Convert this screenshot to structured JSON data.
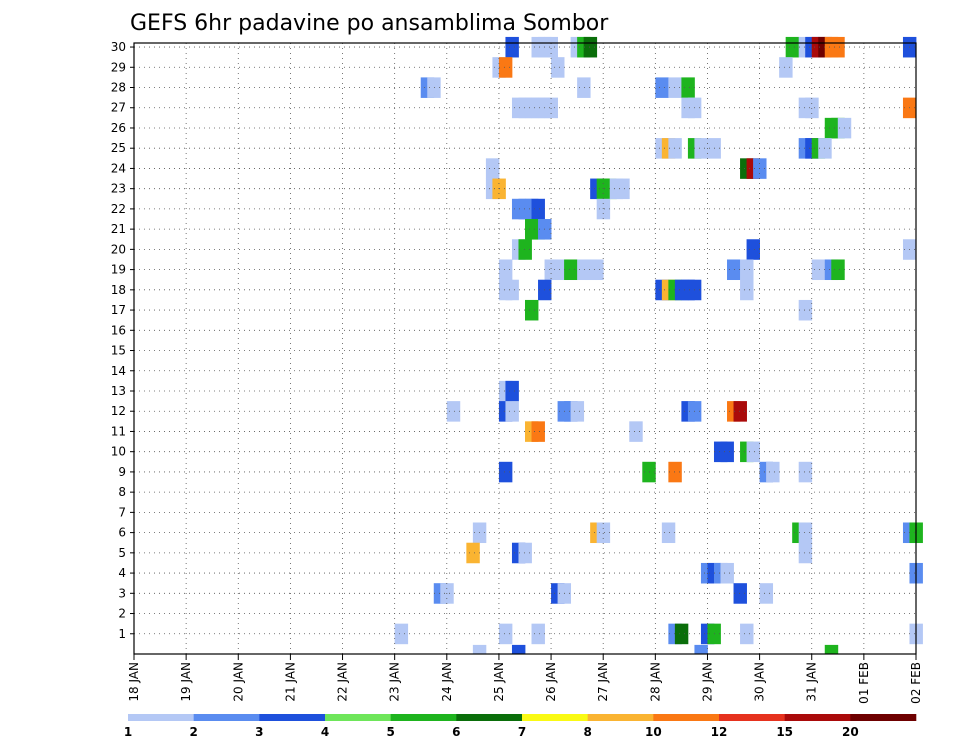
{
  "chart_data": {
    "type": "heatmap",
    "title": "GEFS 6hr padavine po ansamblima Sombor",
    "x_ticks": [
      "18 JAN",
      "19 JAN",
      "20 JAN",
      "21 JAN",
      "22 JAN",
      "23 JAN",
      "24 JAN",
      "25 JAN",
      "26 JAN",
      "27 JAN",
      "28 JAN",
      "29 JAN",
      "30 JAN",
      "31 JAN",
      "01 FEB",
      "02 FEB"
    ],
    "y_ticks": [
      "1",
      "2",
      "3",
      "4",
      "5",
      "6",
      "7",
      "8",
      "9",
      "10",
      "11",
      "12",
      "13",
      "14",
      "15",
      "16",
      "17",
      "18",
      "19",
      "20",
      "21",
      "22",
      "23",
      "24",
      "25",
      "26",
      "27",
      "28",
      "29",
      "30"
    ],
    "x_range_steps": [
      0,
      60
    ],
    "y_range": [
      0,
      30
    ],
    "grid": true,
    "legend": {
      "placement": "bottom",
      "labels": [
        "1",
        "2",
        "3",
        "4",
        "5",
        "6",
        "7",
        "8",
        "10",
        "12",
        "15",
        "20"
      ],
      "colors": [
        "#b4c8f5",
        "#5a8cf0",
        "#1e50dc",
        "#6ee65a",
        "#1eb41e",
        "#0a6e0a",
        "#fafa14",
        "#fab432",
        "#fa7814",
        "#e6321e",
        "#aa0a0a",
        "#6e0000"
      ]
    },
    "cells": [
      [
        30,
        28.5,
        3
      ],
      [
        30,
        30.5,
        1
      ],
      [
        30,
        31,
        1
      ],
      [
        30,
        31.5,
        1
      ],
      [
        30,
        33.5,
        1
      ],
      [
        30,
        34,
        5
      ],
      [
        30,
        34.5,
        6
      ],
      [
        30,
        50,
        5
      ],
      [
        30,
        51,
        1
      ],
      [
        30,
        51.5,
        3
      ],
      [
        30,
        52,
        11
      ],
      [
        30,
        52.5,
        12
      ],
      [
        30,
        53,
        9
      ],
      [
        30,
        53.5,
        9
      ],
      [
        30,
        59,
        3
      ],
      [
        29,
        27.5,
        1
      ],
      [
        29,
        28,
        9
      ],
      [
        29,
        32,
        1
      ],
      [
        29,
        49.5,
        1
      ],
      [
        28,
        22,
        2
      ],
      [
        28,
        22.5,
        1
      ],
      [
        28,
        34,
        1
      ],
      [
        28,
        40,
        2
      ],
      [
        28,
        41,
        1
      ],
      [
        28,
        42,
        5
      ],
      [
        27,
        29,
        1
      ],
      [
        27,
        29.5,
        1
      ],
      [
        27,
        30,
        1
      ],
      [
        27,
        30.5,
        1
      ],
      [
        27,
        31,
        1
      ],
      [
        27,
        31.5,
        1
      ],
      [
        27,
        42,
        1
      ],
      [
        27,
        42.5,
        1
      ],
      [
        27,
        51,
        1
      ],
      [
        27,
        51.5,
        1
      ],
      [
        27,
        59,
        9
      ],
      [
        26,
        53,
        5
      ],
      [
        26,
        53.5,
        5
      ],
      [
        26,
        54,
        1
      ],
      [
        25,
        40,
        1
      ],
      [
        25,
        40.5,
        8
      ],
      [
        25,
        41,
        1
      ],
      [
        25,
        42.5,
        5
      ],
      [
        25,
        43,
        1
      ],
      [
        25,
        44,
        1
      ],
      [
        25,
        51,
        2
      ],
      [
        25,
        51.5,
        3
      ],
      [
        25,
        52,
        5
      ],
      [
        25,
        52.5,
        1
      ],
      [
        24,
        27,
        1
      ],
      [
        24,
        46.5,
        6
      ],
      [
        24,
        47,
        11
      ],
      [
        24,
        47.5,
        2
      ],
      [
        23,
        27,
        1
      ],
      [
        23,
        27.5,
        8
      ],
      [
        23,
        35,
        3
      ],
      [
        23,
        35.5,
        5
      ],
      [
        23,
        36,
        5
      ],
      [
        23,
        36.5,
        1
      ],
      [
        23,
        37,
        1
      ],
      [
        22,
        29,
        2
      ],
      [
        22,
        29.5,
        2
      ],
      [
        22,
        30,
        2
      ],
      [
        22,
        30.5,
        3
      ],
      [
        22,
        35.5,
        1
      ],
      [
        21,
        30,
        5
      ],
      [
        21,
        30.5,
        5
      ],
      [
        21,
        31,
        2
      ],
      [
        20,
        29,
        1
      ],
      [
        20,
        29.5,
        5
      ],
      [
        20,
        47,
        3
      ],
      [
        20,
        59,
        1
      ],
      [
        19,
        28,
        1
      ],
      [
        19,
        31.5,
        1
      ],
      [
        19,
        32,
        1
      ],
      [
        19,
        33,
        5
      ],
      [
        19,
        34,
        1
      ],
      [
        19,
        34.5,
        1
      ],
      [
        19,
        35,
        1
      ],
      [
        19,
        45.5,
        2
      ],
      [
        19,
        46.5,
        1
      ],
      [
        19,
        52,
        1
      ],
      [
        19,
        53,
        2
      ],
      [
        19,
        53.5,
        5
      ],
      [
        18,
        28,
        1
      ],
      [
        18,
        28.5,
        1
      ],
      [
        18,
        31,
        3
      ],
      [
        18,
        40,
        3
      ],
      [
        18,
        40.5,
        8
      ],
      [
        18,
        41,
        5
      ],
      [
        18,
        41.5,
        3
      ],
      [
        18,
        42,
        3
      ],
      [
        18,
        42.5,
        3
      ],
      [
        18,
        46.5,
        1
      ],
      [
        17,
        30,
        5
      ],
      [
        17,
        51,
        1
      ],
      [
        13,
        28,
        1
      ],
      [
        13,
        28.5,
        3
      ],
      [
        12,
        24,
        1
      ],
      [
        12,
        28,
        3
      ],
      [
        12,
        28.5,
        1
      ],
      [
        12,
        32.5,
        2
      ],
      [
        12,
        33,
        2
      ],
      [
        12,
        33.5,
        1
      ],
      [
        12,
        42,
        3
      ],
      [
        12,
        42.5,
        2
      ],
      [
        12,
        45.5,
        9
      ],
      [
        12,
        46,
        11
      ],
      [
        11,
        30,
        8
      ],
      [
        11,
        30.5,
        9
      ],
      [
        11,
        38,
        1
      ],
      [
        10,
        44.5,
        3
      ],
      [
        10,
        45,
        3
      ],
      [
        10,
        46.5,
        5
      ],
      [
        10,
        47,
        1
      ],
      [
        9,
        28,
        3
      ],
      [
        9,
        39,
        5
      ],
      [
        9,
        41,
        9
      ],
      [
        9,
        48,
        2
      ],
      [
        9,
        48.5,
        1
      ],
      [
        9,
        51,
        1
      ],
      [
        6,
        26,
        1
      ],
      [
        6,
        35,
        8
      ],
      [
        6,
        35.5,
        1
      ],
      [
        6,
        40.5,
        1
      ],
      [
        6,
        50.5,
        5
      ],
      [
        6,
        51,
        1
      ],
      [
        6,
        59,
        2
      ],
      [
        6,
        59.5,
        5
      ],
      [
        5,
        25.5,
        8
      ],
      [
        5,
        29,
        3
      ],
      [
        5,
        29.5,
        1
      ],
      [
        5,
        51,
        1
      ],
      [
        4,
        43.5,
        2
      ],
      [
        4,
        44,
        3
      ],
      [
        4,
        44.5,
        2
      ],
      [
        4,
        45,
        1
      ],
      [
        4,
        59.5,
        2
      ],
      [
        3,
        23,
        2
      ],
      [
        3,
        23.5,
        1
      ],
      [
        3,
        32,
        3
      ],
      [
        3,
        32.5,
        1
      ],
      [
        3,
        46,
        3
      ],
      [
        3,
        48,
        1
      ],
      [
        1,
        20,
        1
      ],
      [
        1,
        28,
        1
      ],
      [
        1,
        30.5,
        1
      ],
      [
        1,
        41,
        2
      ],
      [
        1,
        41.5,
        6
      ],
      [
        1,
        43.5,
        3
      ],
      [
        1,
        44,
        5
      ],
      [
        1,
        46.5,
        1
      ],
      [
        1,
        59.5,
        1
      ],
      [
        0,
        26,
        1
      ],
      [
        0,
        29,
        3
      ],
      [
        0,
        43,
        2
      ],
      [
        0,
        53,
        5
      ]
    ]
  }
}
